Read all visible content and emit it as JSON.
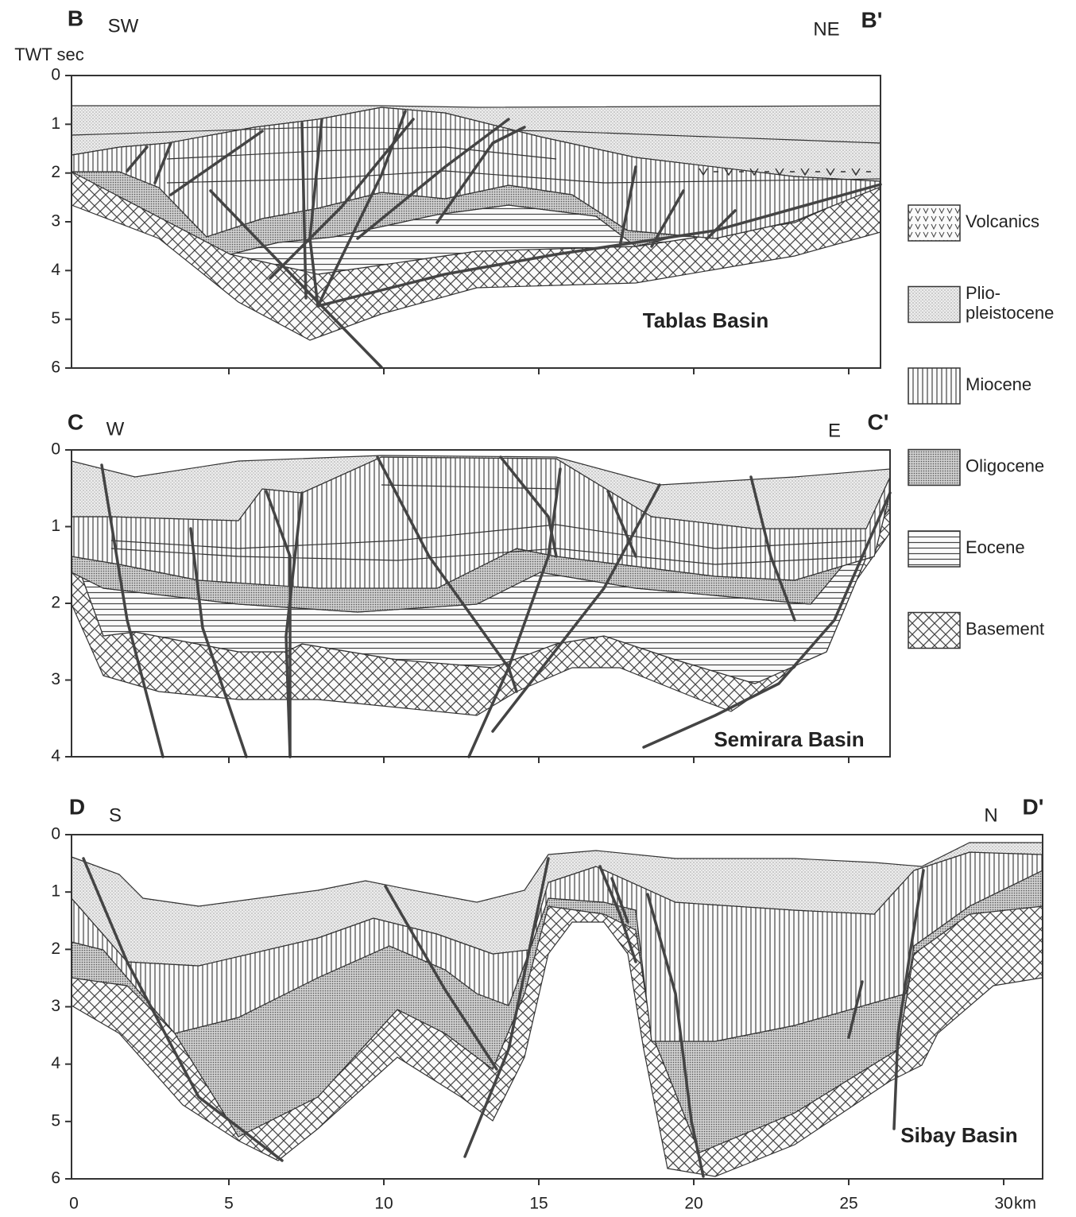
{
  "y_axis_label": "TWT sec",
  "sections": [
    {
      "label_left": "B",
      "dir_left": "SW",
      "dir_right": "NE",
      "label_right": "B'",
      "basin": "Tablas Basin",
      "yticks": [
        0,
        1,
        2,
        3,
        4,
        5,
        6
      ]
    },
    {
      "label_left": "C",
      "dir_left": "W",
      "dir_right": "E",
      "label_right": "C'",
      "basin": "Semirara Basin",
      "yticks": [
        0,
        1,
        2,
        3,
        4
      ]
    },
    {
      "label_left": "D",
      "dir_left": "S",
      "dir_right": "N",
      "label_right": "D'",
      "basin": "Sibay Basin",
      "yticks": [
        0,
        1,
        2,
        3,
        4,
        5,
        6
      ]
    }
  ],
  "xticks": [
    0,
    5,
    10,
    15,
    20,
    25,
    30
  ],
  "x_unit": "km",
  "legend": [
    {
      "lines": [
        "Volcanics"
      ]
    },
    {
      "lines": [
        "Plio-",
        "pleistocene"
      ]
    },
    {
      "lines": [
        "Miocene"
      ]
    },
    {
      "lines": [
        "Oligocene"
      ]
    },
    {
      "lines": [
        "Eocene"
      ]
    },
    {
      "lines": [
        "Basement"
      ]
    }
  ]
}
